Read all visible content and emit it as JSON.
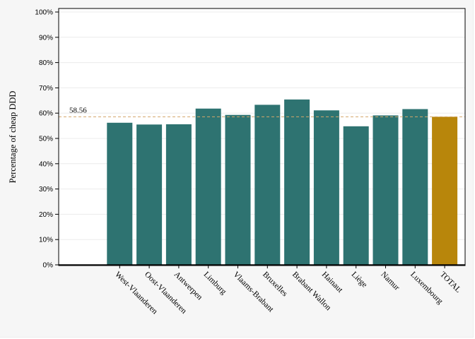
{
  "chart_data": {
    "type": "bar",
    "ylabel": "Percentage of cheap DDD",
    "ylim": [
      0,
      100
    ],
    "yticks": [
      0,
      10,
      20,
      30,
      40,
      50,
      60,
      70,
      80,
      90,
      100
    ],
    "ytick_suffix": "%",
    "categories": [
      "",
      "West-Vlaanderen",
      "Oost-Vlaanderen",
      "Antwerpen",
      "Limburg",
      "Vlaams-Brabant",
      "Bruxelles",
      "Brabant Wallon",
      "Hainaut",
      "Liège",
      "Namur",
      "Luxembourg",
      "TOTAL"
    ],
    "values": [
      null,
      56.2,
      55.5,
      55.6,
      61.8,
      59.3,
      63.3,
      65.4,
      61.1,
      54.8,
      59.1,
      61.6,
      58.56
    ],
    "bar_colors": [
      "#2e7371",
      "#2e7371",
      "#2e7371",
      "#2e7371",
      "#2e7371",
      "#2e7371",
      "#2e7371",
      "#2e7371",
      "#2e7371",
      "#2e7371",
      "#2e7371",
      "#2e7371",
      "#b8860b"
    ],
    "reference_line": {
      "value": 58.56,
      "label": "58.56",
      "color": "#d4a66a"
    },
    "grid": true,
    "legend": "none"
  }
}
